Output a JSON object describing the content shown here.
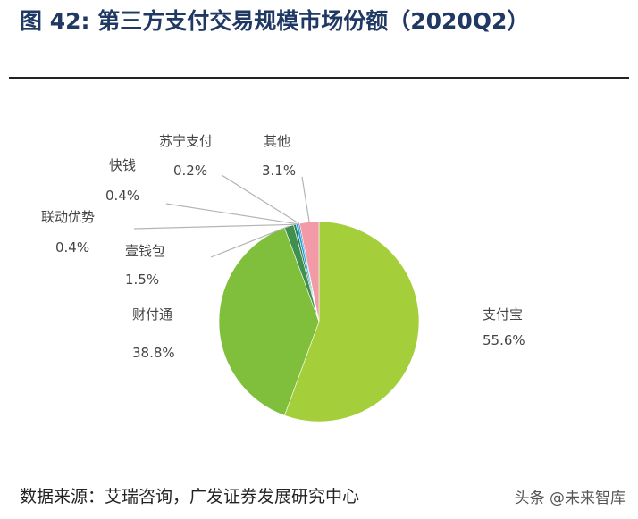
{
  "title": "图 42: 第三方支付交易规模市场份额（2020Q2）",
  "source": "数据来源：艾瑞咨询，广发证券发展研究中心",
  "watermark": "头条 @未来智库",
  "chart_data": {
    "type": "pie",
    "title": "图 42: 第三方支付交易规模市场份额（2020Q2）",
    "slices": [
      {
        "name": "支付宝",
        "value": 55.6,
        "label": "55.6%",
        "color": "#a5cf3a"
      },
      {
        "name": "财付通",
        "value": 38.8,
        "label": "38.8%",
        "color": "#7fbf3b"
      },
      {
        "name": "壹钱包",
        "value": 1.5,
        "label": "1.5%",
        "color": "#3f8f4f"
      },
      {
        "name": "联动优势",
        "value": 0.4,
        "label": "0.4%",
        "color": "#2e7d5b"
      },
      {
        "name": "快钱",
        "value": 0.4,
        "label": "0.4%",
        "color": "#1aa3d9"
      },
      {
        "name": "苏宁支付",
        "value": 0.2,
        "label": "0.2%",
        "color": "#2f5fa8"
      },
      {
        "name": "其他",
        "value": 3.1,
        "label": "3.1%",
        "color": "#f29aa6"
      }
    ],
    "legend": "none"
  }
}
